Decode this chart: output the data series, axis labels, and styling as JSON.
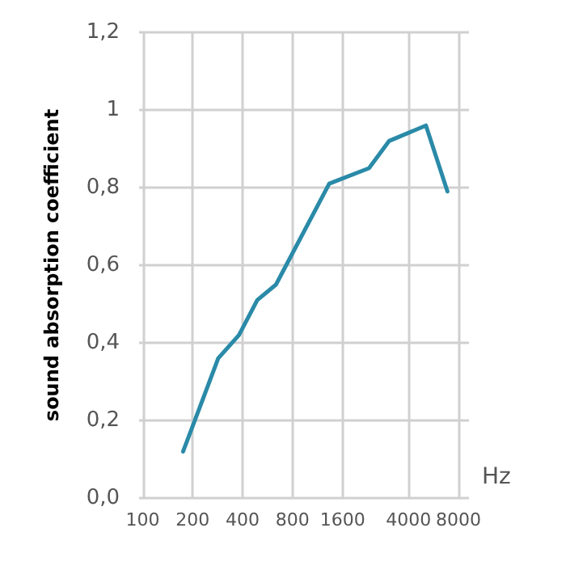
{
  "chart_data": {
    "type": "line",
    "xlabel": "Hz",
    "ylabel": "sound absorption coefficient",
    "x": [
      175,
      285,
      380,
      490,
      635,
      1330,
      2310,
      3050,
      5090,
      6860
    ],
    "series": [
      {
        "color": "#2a8aa8",
        "values": [
          0.12,
          0.36,
          0.42,
          0.51,
          0.55,
          0.81,
          0.85,
          0.92,
          0.96,
          0.79
        ]
      }
    ],
    "log": "x",
    "xlim": [
      95,
      9250
    ],
    "xticks": [
      100,
      200,
      400,
      800,
      1600,
      4000,
      8000
    ],
    "ylim": [
      0,
      1.2
    ],
    "yticks": [
      {
        "value": 0,
        "label": "0,0"
      },
      {
        "value": 0.2,
        "label": "0,2"
      },
      {
        "value": 0.4,
        "label": "0,4"
      },
      {
        "value": 0.6,
        "label": "0,6"
      },
      {
        "value": 0.8,
        "label": "0,8"
      },
      {
        "value": 1,
        "label": "1"
      },
      {
        "value": 1.2,
        "label": "1,2"
      }
    ],
    "grid": true,
    "marker": "none",
    "line_style": "solid"
  }
}
